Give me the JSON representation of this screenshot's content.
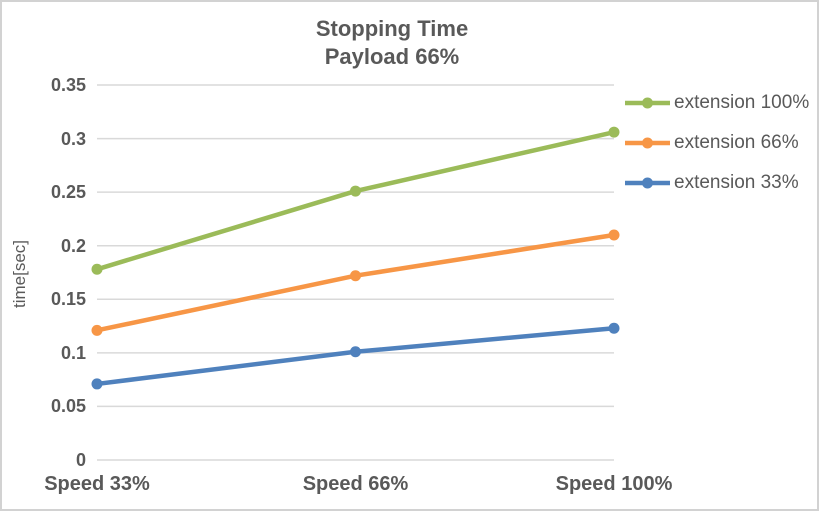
{
  "chart_data": {
    "type": "line",
    "title": "Stopping Time",
    "subtitle": "Payload 66%",
    "categories": [
      "Speed 33%",
      "Speed 66%",
      "Speed 100%"
    ],
    "series": [
      {
        "name": "extension 100%",
        "color": "#9BBB59",
        "values": [
          0.178,
          0.251,
          0.306
        ]
      },
      {
        "name": "extension 66%",
        "color": "#F79646",
        "values": [
          0.121,
          0.172,
          0.21
        ]
      },
      {
        "name": "extension 33%",
        "color": "#4F81BD",
        "values": [
          0.071,
          0.101,
          0.123
        ]
      }
    ],
    "xlabel": "",
    "ylabel": "time[sec]",
    "ylim": [
      0,
      0.35
    ],
    "ytick_step": 0.05,
    "yticks": [
      "0",
      "0.05",
      "0.1",
      "0.15",
      "0.2",
      "0.25",
      "0.3",
      "0.35"
    ],
    "grid": true,
    "legend_position": "right",
    "marker": "circle",
    "colors": {
      "text": "#595959",
      "gridline": "#D9D9D9",
      "border": "#D2D2D2",
      "background": "#FFFFFF"
    }
  }
}
